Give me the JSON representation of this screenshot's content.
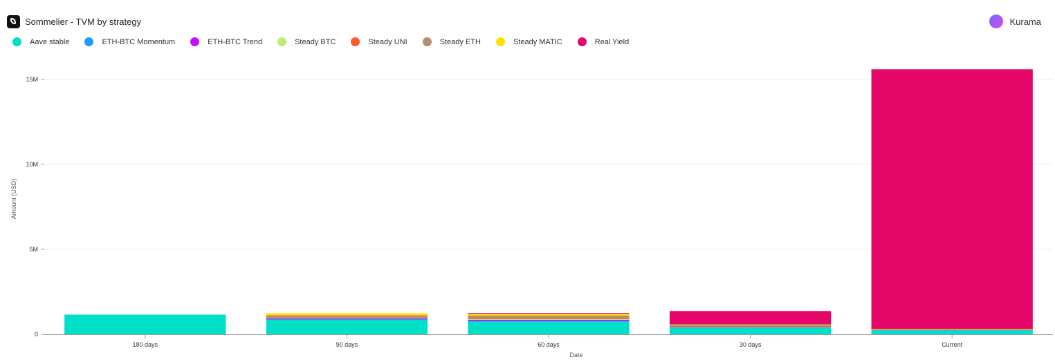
{
  "header": {
    "title": "Sommelier - TVM by strategy",
    "logo_icon": "sommelier-logo-icon"
  },
  "brand": {
    "name": "Kurama",
    "icon": "kurama-avatar-icon"
  },
  "chart_data": {
    "type": "bar",
    "stacked": true,
    "categories": [
      "180 days",
      "90 days",
      "60 days",
      "30 days",
      "Current"
    ],
    "series": [
      {
        "name": "Aave stable",
        "color": "#00e0c8",
        "values": [
          1160000,
          850000,
          750000,
          400000,
          230000
        ]
      },
      {
        "name": "ETH-BTC Momentum",
        "color": "#1e9bff",
        "values": [
          0,
          40000,
          40000,
          15000,
          10000
        ]
      },
      {
        "name": "ETH-BTC Trend",
        "color": "#c010ff",
        "values": [
          0,
          40000,
          70000,
          15000,
          10000
        ]
      },
      {
        "name": "Steady BTC",
        "color": "#b8ef6f",
        "values": [
          0,
          30000,
          40000,
          20000,
          10000
        ]
      },
      {
        "name": "Steady UNI",
        "color": "#ff5a2d",
        "values": [
          0,
          50000,
          70000,
          50000,
          10000
        ]
      },
      {
        "name": "Steady ETH",
        "color": "#b09070",
        "values": [
          0,
          110000,
          140000,
          70000,
          20000
        ]
      },
      {
        "name": "Steady MATIC",
        "color": "#ffe000",
        "values": [
          0,
          120000,
          100000,
          20000,
          30000
        ]
      },
      {
        "name": "Real Yield",
        "color": "#e5066a",
        "values": [
          0,
          0,
          40000,
          780000,
          15280000
        ]
      }
    ],
    "xlabel": "Date",
    "ylabel": "Amount (USD)",
    "ylim": [
      0,
      15000000
    ],
    "yticks": [
      {
        "value": 0,
        "label": "0"
      },
      {
        "value": 5000000,
        "label": "5M"
      },
      {
        "value": 10000000,
        "label": "10M"
      },
      {
        "value": 15000000,
        "label": "15M"
      }
    ],
    "grid": true,
    "legend_position": "top-left"
  }
}
